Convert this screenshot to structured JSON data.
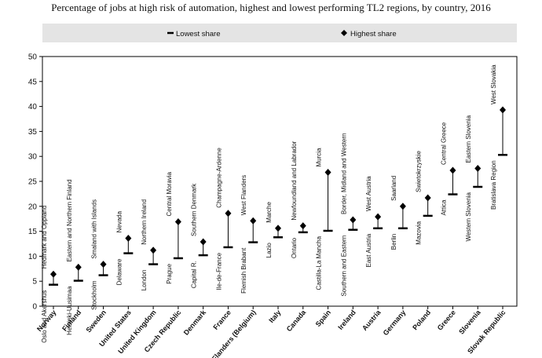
{
  "chart_data": {
    "type": "range",
    "title": "Percentage of jobs at high risk of automation, highest and lowest performing TL2 regions, by country, 2016",
    "ylim": [
      0,
      50
    ],
    "yticks": [
      0,
      5,
      10,
      15,
      20,
      25,
      30,
      35,
      40,
      45,
      50
    ],
    "legend": {
      "placement": "top",
      "low_label": "Lowest share",
      "high_label": "Highest share"
    },
    "categories": [
      "Norway",
      "Finland",
      "Sweden",
      "United States",
      "United Kingdom",
      "Czech Republic",
      "Denmark",
      "France",
      "Flanders (Belgium)",
      "Italy",
      "Canada",
      "Spain",
      "Ireland",
      "Austria",
      "Germany",
      "Poland",
      "Greece",
      "Slovenia",
      "Slovak Republic"
    ],
    "series": [
      {
        "name": "Lowest share",
        "values": [
          4.3,
          5.1,
          6.2,
          10.6,
          8.4,
          9.6,
          10.2,
          11.8,
          12.8,
          13.8,
          14.8,
          15.1,
          15.3,
          15.6,
          15.6,
          18.1,
          22.4,
          23.9,
          30.3
        ]
      },
      {
        "name": "Highest share",
        "values": [
          6.4,
          7.8,
          8.4,
          13.6,
          11.2,
          16.9,
          12.9,
          18.6,
          17.1,
          15.6,
          16.1,
          26.8,
          17.3,
          17.9,
          20.0,
          21.7,
          27.2,
          27.6,
          39.3
        ]
      }
    ],
    "low_region_labels": [
      "Oslo and Akershus",
      "Helsinki-Uusimaa",
      "Stockholm",
      "Delaware",
      "London",
      "Prague",
      "Capital R.",
      "Ile-de-France",
      "Flemish Brabant",
      "Lazio",
      "Ontario",
      "Castilla-La Mancha",
      "Southern and Eastern",
      "East Austria",
      "Berlin",
      "Mazovia",
      "Attica",
      "Western Slovenia",
      "Bratislava Region"
    ],
    "high_region_labels": [
      "Hedmark and Oppland",
      "Eastern and Northern Finland",
      "Smaland with Islands",
      "Nevada",
      "Northern Ireland",
      "Central Moravia",
      "Southern Denmark",
      "Champagne-Ardenne",
      "West Flanders",
      "Marche",
      "Newfoundland and Labrador",
      "Murcia",
      "Border, Midland and Western",
      "West Austria",
      "Saarland",
      "Swietokrzyskie",
      "Central Greece",
      "Eastern Slovenia",
      "West Slovakia"
    ]
  }
}
